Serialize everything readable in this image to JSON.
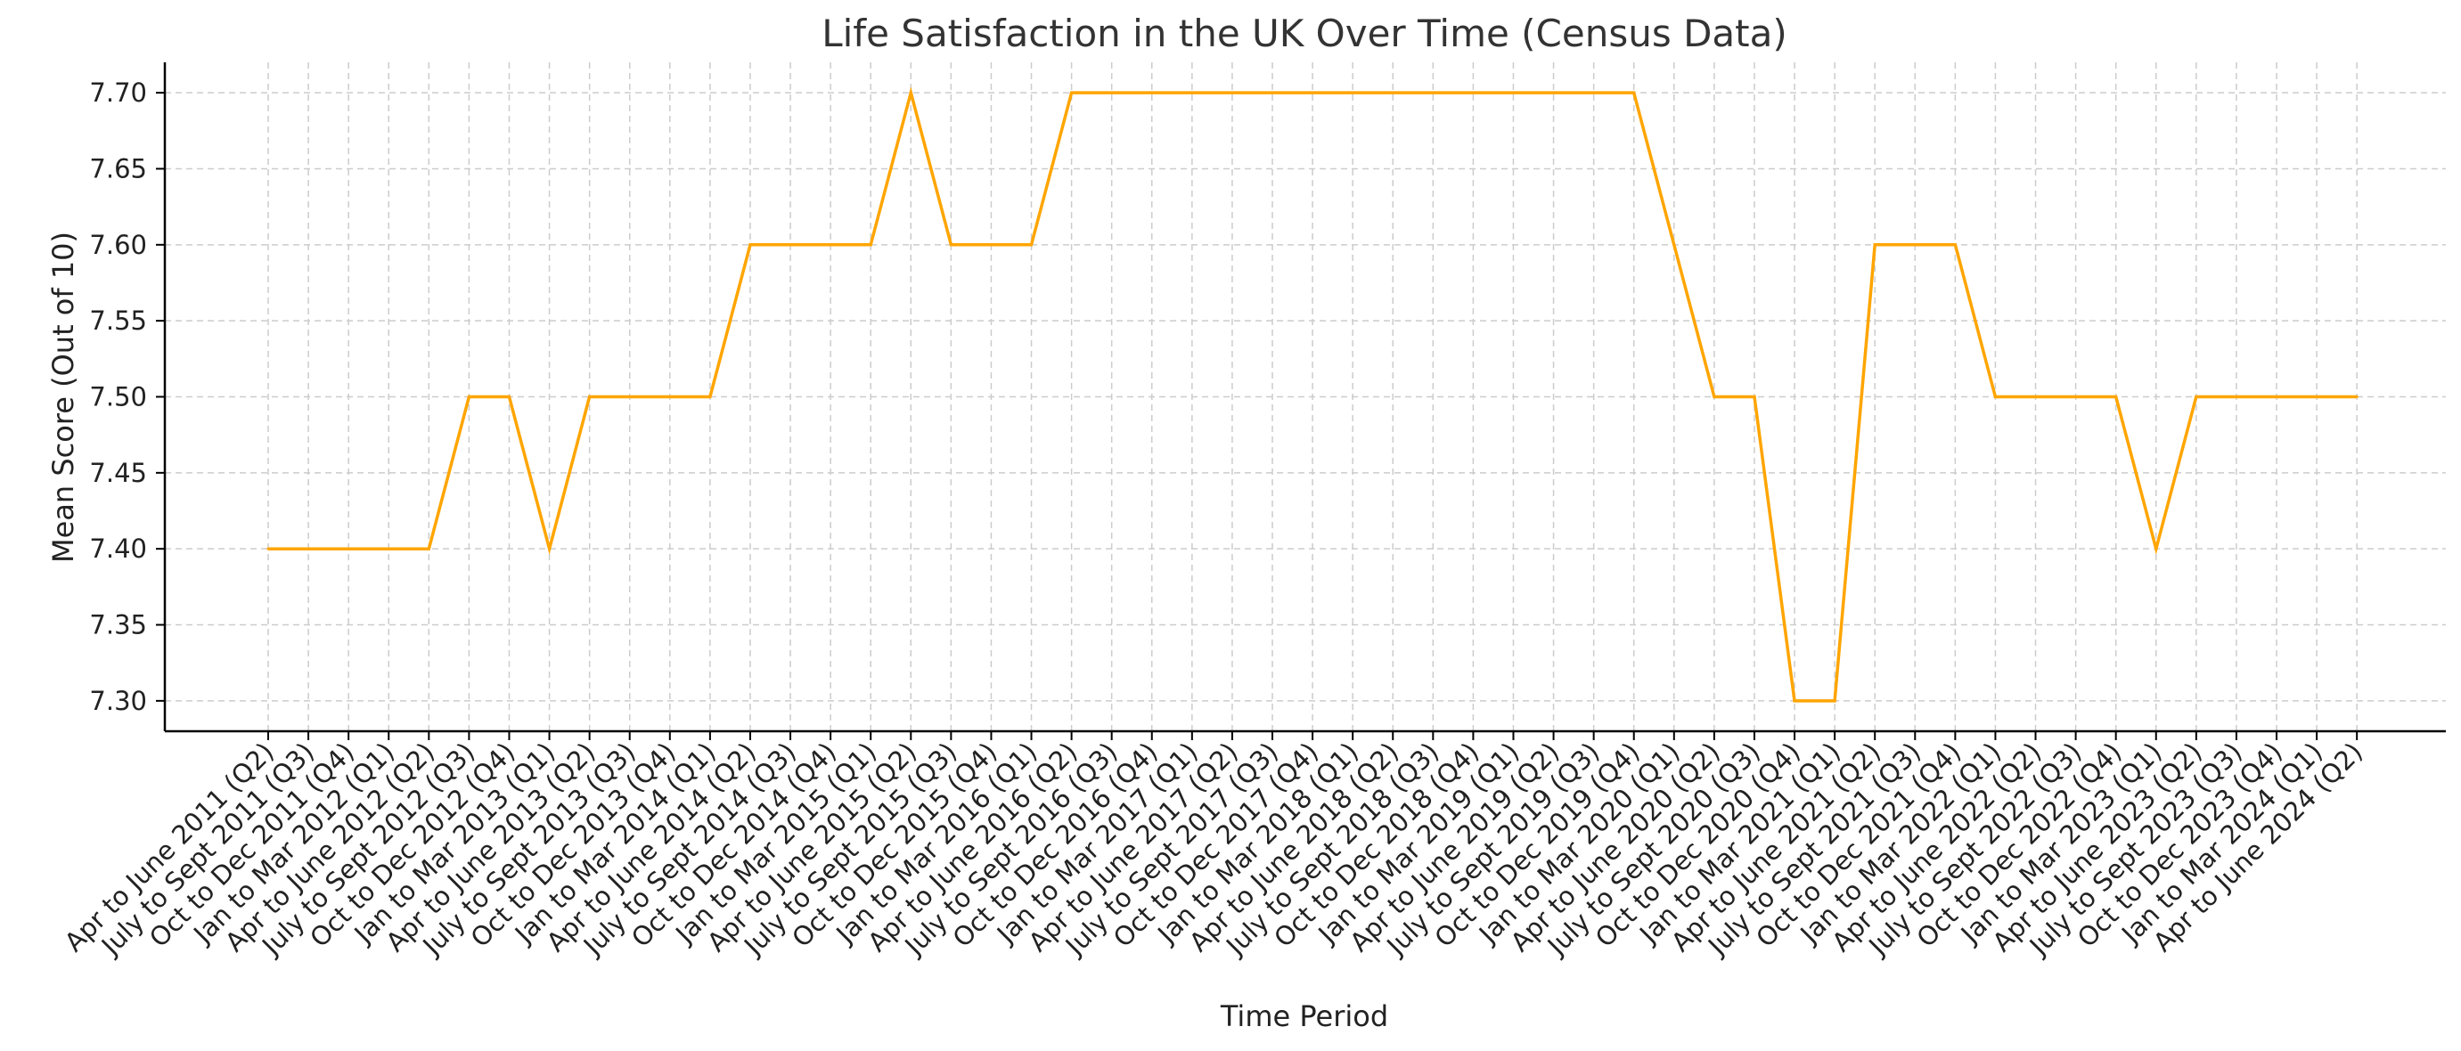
{
  "chart_data": {
    "type": "line",
    "title": "Life Satisfaction in the UK Over Time (Census Data)",
    "xlabel": "Time Period",
    "ylabel": "Mean Score (Out of 10)",
    "ylim": [
      7.28,
      7.72
    ],
    "yticks": [
      "7.30",
      "7.35",
      "7.40",
      "7.45",
      "7.50",
      "7.55",
      "7.60",
      "7.65",
      "7.70"
    ],
    "grid": true,
    "line_color": "#FFA500",
    "categories": [
      "Apr to June 2011 (Q2)",
      "July to Sept 2011 (Q3)",
      "Oct to Dec 2011 (Q4)",
      "Jan to Mar 2012 (Q1)",
      "Apr to June 2012 (Q2)",
      "July to Sept 2012 (Q3)",
      "Oct to Dec 2012 (Q4)",
      "Jan to Mar 2013 (Q1)",
      "Apr to June 2013 (Q2)",
      "July to Sept 2013 (Q3)",
      "Oct to Dec 2013 (Q4)",
      "Jan to Mar 2014 (Q1)",
      "Apr to June 2014 (Q2)",
      "July to Sept 2014 (Q3)",
      "Oct to Dec 2014 (Q4)",
      "Jan to Mar 2015 (Q1)",
      "Apr to June 2015 (Q2)",
      "July to Sept 2015 (Q3)",
      "Oct to Dec 2015 (Q4)",
      "Jan to Mar 2016 (Q1)",
      "Apr to June 2016 (Q2)",
      "July to Sept 2016 (Q3)",
      "Oct to Dec 2016 (Q4)",
      "Jan to Mar 2017 (Q1)",
      "Apr to June 2017 (Q2)",
      "July to Sept 2017 (Q3)",
      "Oct to Dec 2017 (Q4)",
      "Jan to Mar 2018 (Q1)",
      "Apr to June 2018 (Q2)",
      "July to Sept 2018 (Q3)",
      "Oct to Dec 2018 (Q4)",
      "Jan to Mar 2019 (Q1)",
      "Apr to June 2019 (Q2)",
      "July to Sept 2019 (Q3)",
      "Oct to Dec 2019 (Q4)",
      "Jan to Mar 2020 (Q1)",
      "Apr to June 2020 (Q2)",
      "July to Sept 2020 (Q3)",
      "Oct to Dec 2020 (Q4)",
      "Jan to Mar 2021 (Q1)",
      "Apr to June 2021 (Q2)",
      "July to Sept 2021 (Q3)",
      "Oct to Dec 2021 (Q4)",
      "Jan to Mar 2022 (Q1)",
      "Apr to June 2022 (Q2)",
      "July to Sept 2022 (Q3)",
      "Oct to Dec 2022 (Q4)",
      "Jan to Mar 2023 (Q1)",
      "Apr to June 2023 (Q2)",
      "July to Sept 2023 (Q3)",
      "Oct to Dec 2023 (Q4)",
      "Jan to Mar 2024 (Q1)",
      "Apr to June 2024 (Q2)"
    ],
    "series": [
      {
        "values": [
          7.4,
          7.4,
          7.4,
          7.4,
          7.4,
          7.5,
          7.5,
          7.4,
          7.5,
          7.5,
          7.5,
          7.5,
          7.6,
          7.6,
          7.6,
          7.6,
          7.7,
          7.6,
          7.6,
          7.6,
          7.7,
          7.7,
          7.7,
          7.7,
          7.7,
          7.7,
          7.7,
          7.7,
          7.7,
          7.7,
          7.7,
          7.7,
          7.7,
          7.7,
          7.7,
          7.6,
          7.5,
          7.5,
          7.3,
          7.3,
          7.6,
          7.6,
          7.6,
          7.5,
          7.5,
          7.5,
          7.5,
          7.4,
          7.5,
          7.5,
          7.5,
          7.5,
          7.5
        ]
      }
    ]
  }
}
